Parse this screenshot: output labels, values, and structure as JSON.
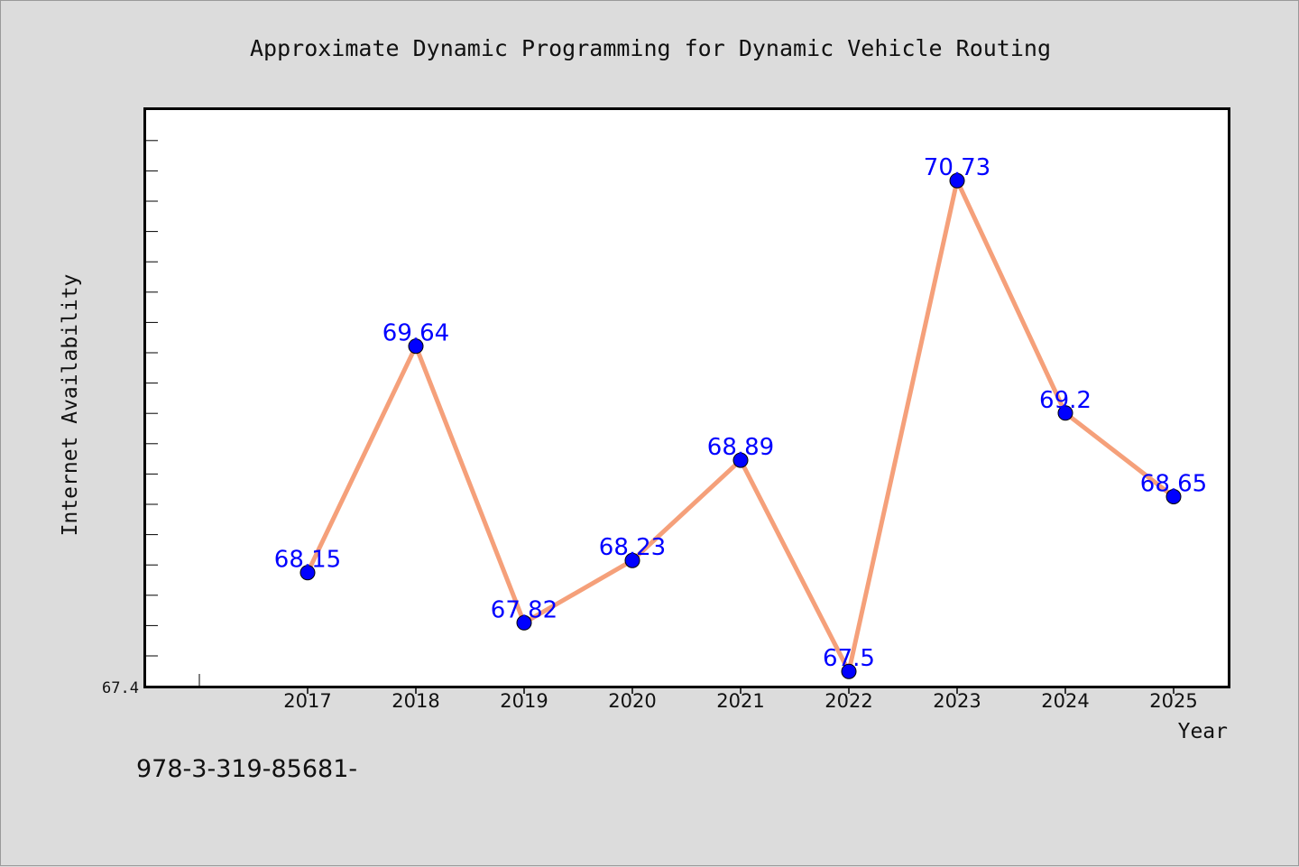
{
  "chart_data": {
    "type": "line",
    "title": "Approximate Dynamic Programming for Dynamic Vehicle Routing",
    "xlabel": "Year",
    "ylabel": "Internet Availability",
    "categories": [
      "2017",
      "2018",
      "2019",
      "2020",
      "2021",
      "2022",
      "2023",
      "2024",
      "2025"
    ],
    "values": [
      68.15,
      69.64,
      67.82,
      68.23,
      68.89,
      67.5,
      70.73,
      69.2,
      68.65
    ],
    "data_labels": [
      "68.15",
      "69.64",
      "67.82",
      "68.23",
      "68.89",
      "67.5",
      "70.73",
      "69.2",
      "68.65"
    ],
    "ylim": [
      67.4,
      71.2
    ],
    "y_tick_labels": [
      "67.4"
    ],
    "grid": false,
    "legend": "none"
  },
  "colors": {
    "background": "#dcdcdc",
    "plot_area": "#ffffff",
    "line": "#f5a07a",
    "marker": "#0000ff",
    "data_label": "#0000ff",
    "text": "#111111"
  },
  "footer": {
    "code": "978-3-319-85681-"
  }
}
